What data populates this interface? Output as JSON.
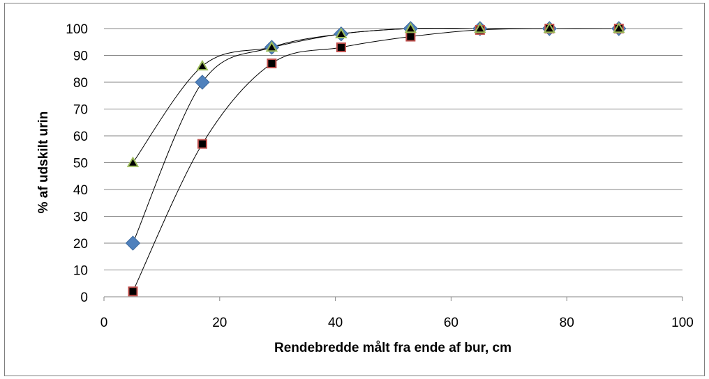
{
  "chart_data": {
    "type": "scatter",
    "title": "",
    "xlabel": "Rendebredde målt fra ende af bur, cm",
    "ylabel": "% af udskilt urin",
    "xlim": [
      0,
      100
    ],
    "ylim": [
      0,
      100
    ],
    "x_ticks": [
      0,
      20,
      40,
      60,
      80,
      100
    ],
    "y_ticks": [
      0,
      10,
      20,
      30,
      40,
      50,
      60,
      70,
      80,
      90,
      100
    ],
    "grid": "horizontal",
    "legend": "none",
    "smoothed_lines": true,
    "series": [
      {
        "marker": "diamond",
        "color": "#4f81bd",
        "x": [
          5,
          17,
          29,
          41,
          53,
          65,
          77,
          89
        ],
        "values": [
          20,
          80,
          93,
          98,
          100,
          100,
          100,
          100
        ]
      },
      {
        "marker": "square",
        "color": "#c0504d",
        "x": [
          5,
          17,
          29,
          41,
          53,
          65,
          77,
          89
        ],
        "values": [
          2,
          57,
          87,
          93,
          97,
          99.5,
          100,
          100
        ]
      },
      {
        "marker": "triangle",
        "color": "#9bbb59",
        "x": [
          5,
          17,
          29,
          41,
          53,
          65,
          77,
          89
        ],
        "values": [
          50,
          86,
          93,
          98,
          100,
          100,
          100,
          100
        ]
      }
    ]
  }
}
